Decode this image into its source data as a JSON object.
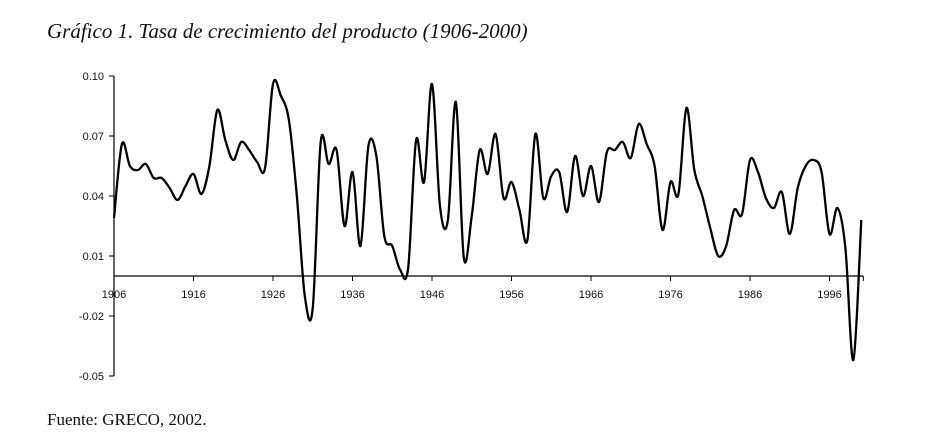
{
  "chart_data": {
    "type": "line",
    "title": "Gráfico 1. Tasa de crecimiento del producto (1906-2000)",
    "source": "Fuente: GRECO, 2002.",
    "xlabel": "",
    "ylabel": "",
    "xlim": [
      1906,
      2000
    ],
    "ylim": [
      -0.05,
      0.1
    ],
    "x_ticks": [
      "1906",
      "1916",
      "1926",
      "1936",
      "1946",
      "1956",
      "1966",
      "1976",
      "1986",
      "1996"
    ],
    "y_ticks": [
      "0.10",
      "0.07",
      "0.04",
      "0.01",
      "-0.02",
      "-0.05"
    ],
    "grid": false,
    "series": [
      {
        "name": "Tasa de crecimiento del producto",
        "color": "#000000",
        "x_start": 1906,
        "values": [
          0.029,
          0.066,
          0.055,
          0.053,
          0.056,
          0.049,
          0.049,
          0.044,
          0.038,
          0.045,
          0.051,
          0.041,
          0.055,
          0.083,
          0.068,
          0.058,
          0.067,
          0.063,
          0.057,
          0.054,
          0.096,
          0.09,
          0.078,
          0.04,
          -0.01,
          -0.016,
          0.067,
          0.056,
          0.063,
          0.025,
          0.052,
          0.015,
          0.065,
          0.06,
          0.02,
          0.015,
          0.003,
          0.004,
          0.068,
          0.047,
          0.096,
          0.035,
          0.028,
          0.087,
          0.009,
          0.03,
          0.063,
          0.051,
          0.071,
          0.039,
          0.047,
          0.033,
          0.018,
          0.071,
          0.039,
          0.05,
          0.052,
          0.032,
          0.06,
          0.04,
          0.055,
          0.037,
          0.062,
          0.063,
          0.067,
          0.059,
          0.076,
          0.066,
          0.055,
          0.023,
          0.047,
          0.041,
          0.084,
          0.053,
          0.04,
          0.024,
          0.01,
          0.015,
          0.033,
          0.031,
          0.058,
          0.052,
          0.039,
          0.034,
          0.042,
          0.021,
          0.044,
          0.055,
          0.058,
          0.052,
          0.021,
          0.034,
          0.014,
          -0.042,
          0.028
        ]
      }
    ]
  }
}
